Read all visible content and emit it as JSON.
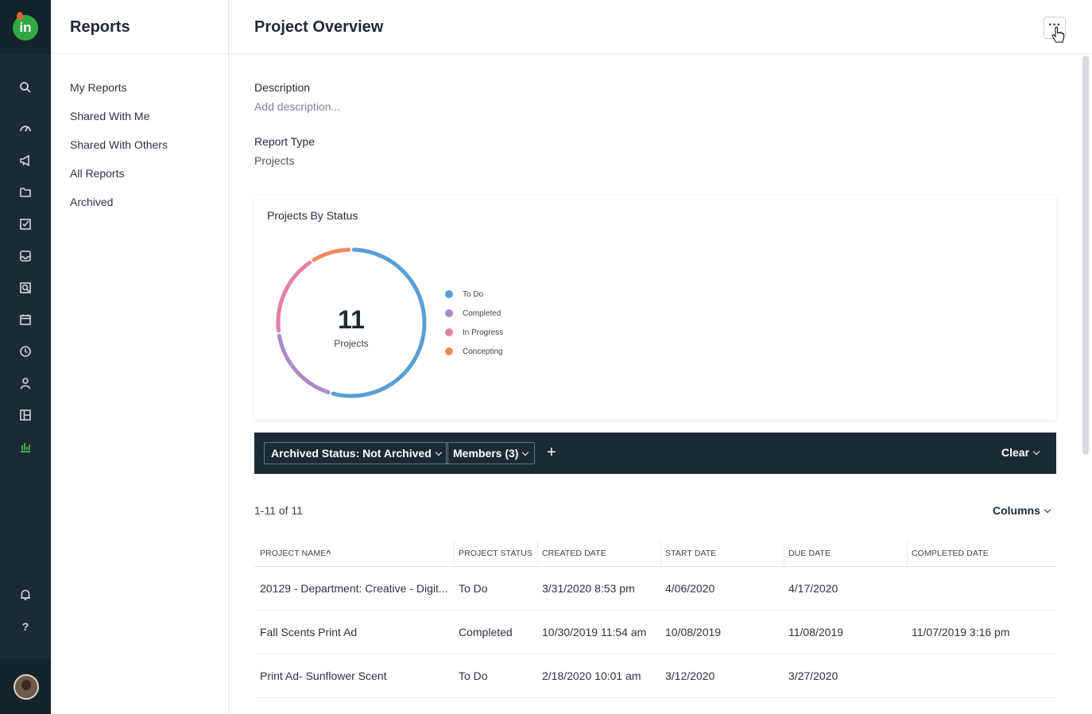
{
  "rail": {
    "logo_text": "in",
    "icons": [
      "search-icon",
      "dashboard-icon",
      "megaphone-icon",
      "folder-icon",
      "task-icon",
      "inbox-icon",
      "review-icon",
      "calendar-icon",
      "clock-icon",
      "person-icon",
      "layout-icon",
      "reports-icon",
      "notifications-icon",
      "help-icon"
    ],
    "help_label": "?"
  },
  "sidebar": {
    "title": "Reports",
    "items": [
      {
        "label": "My Reports"
      },
      {
        "label": "Shared With Me"
      },
      {
        "label": "Shared With Others"
      },
      {
        "label": "All Reports"
      },
      {
        "label": "Archived"
      }
    ]
  },
  "header": {
    "title": "Project Overview",
    "more_label": "···"
  },
  "details": {
    "description_label": "Description",
    "description_placeholder": "Add description...",
    "report_type_label": "Report Type",
    "report_type_value": "Projects"
  },
  "chart_data": {
    "type": "pie",
    "title": "Projects By Status",
    "center_value": "11",
    "center_label": "Projects",
    "categories": [
      "To Do",
      "Completed",
      "In Progress",
      "Concepting"
    ],
    "values": [
      6,
      2,
      2,
      1
    ],
    "colors": [
      "#5a9fd4",
      "#a98cc7",
      "#e47fa8",
      "#f08a5d"
    ],
    "legend_position": "right"
  },
  "filters": {
    "chips": [
      {
        "label": "Archived Status: Not Archived"
      },
      {
        "label": "Members (3)"
      }
    ],
    "add_label": "+",
    "clear_label": "Clear"
  },
  "table": {
    "count_label": "1-11 of 11",
    "columns_label": "Columns",
    "sort_indicator": "^",
    "headers": [
      "Project Name",
      "Project Status",
      "Created Date",
      "Start Date",
      "Due Date",
      "Completed Date"
    ],
    "rows": [
      [
        "20129 - Department: Creative - Digit...",
        "To Do",
        "3/31/2020 8:53 pm",
        "4/06/2020",
        "4/17/2020",
        ""
      ],
      [
        "Fall Scents Print Ad",
        "Completed",
        "10/30/2019 11:54 am",
        "10/08/2019",
        "11/08/2019",
        "11/07/2019 3:16 pm"
      ],
      [
        "Print Ad- Sunflower Scent",
        "To Do",
        "2/18/2020 10:01 am",
        "3/12/2020",
        "3/27/2020",
        ""
      ]
    ]
  }
}
